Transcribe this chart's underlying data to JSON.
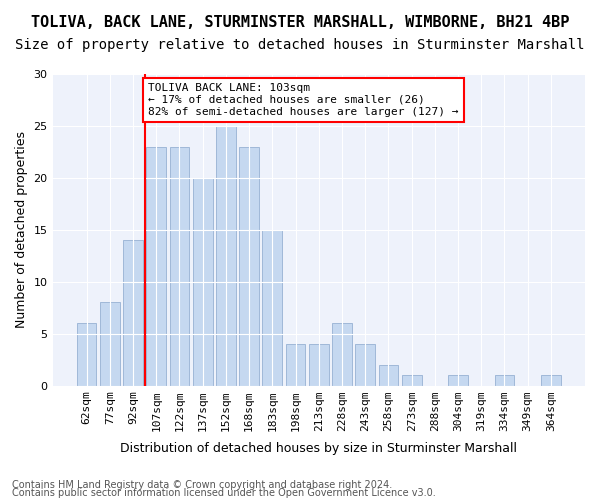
{
  "title1": "TOLIVA, BACK LANE, STURMINSTER MARSHALL, WIMBORNE, BH21 4BP",
  "title2": "Size of property relative to detached houses in Sturminster Marshall",
  "xlabel": "Distribution of detached houses by size in Sturminster Marshall",
  "ylabel": "Number of detached properties",
  "categories": [
    "62sqm",
    "77sqm",
    "92sqm",
    "107sqm",
    "122sqm",
    "137sqm",
    "152sqm",
    "168sqm",
    "183sqm",
    "198sqm",
    "213sqm",
    "228sqm",
    "243sqm",
    "258sqm",
    "273sqm",
    "288sqm",
    "304sqm",
    "319sqm",
    "334sqm",
    "349sqm",
    "364sqm"
  ],
  "values": [
    6,
    8,
    14,
    23,
    23,
    20,
    25,
    23,
    15,
    4,
    4,
    6,
    4,
    2,
    1,
    0,
    1,
    0,
    1,
    0,
    1
  ],
  "bar_color": "#c5d8f0",
  "bar_edge_color": "#a0b8d8",
  "marker_line_color": "red",
  "annotation_text": "TOLIVA BACK LANE: 103sqm\n← 17% of detached houses are smaller (26)\n82% of semi-detached houses are larger (127) →",
  "annotation_box_color": "white",
  "annotation_box_edge_color": "red",
  "ylim": [
    0,
    30
  ],
  "yticks": [
    0,
    5,
    10,
    15,
    20,
    25,
    30
  ],
  "footer1": "Contains HM Land Registry data © Crown copyright and database right 2024.",
  "footer2": "Contains public sector information licensed under the Open Government Licence v3.0.",
  "bg_color": "#eef2fb",
  "title1_fontsize": 11,
  "title2_fontsize": 10,
  "xlabel_fontsize": 9,
  "ylabel_fontsize": 9,
  "tick_fontsize": 8,
  "annotation_fontsize": 8,
  "footer_fontsize": 7
}
